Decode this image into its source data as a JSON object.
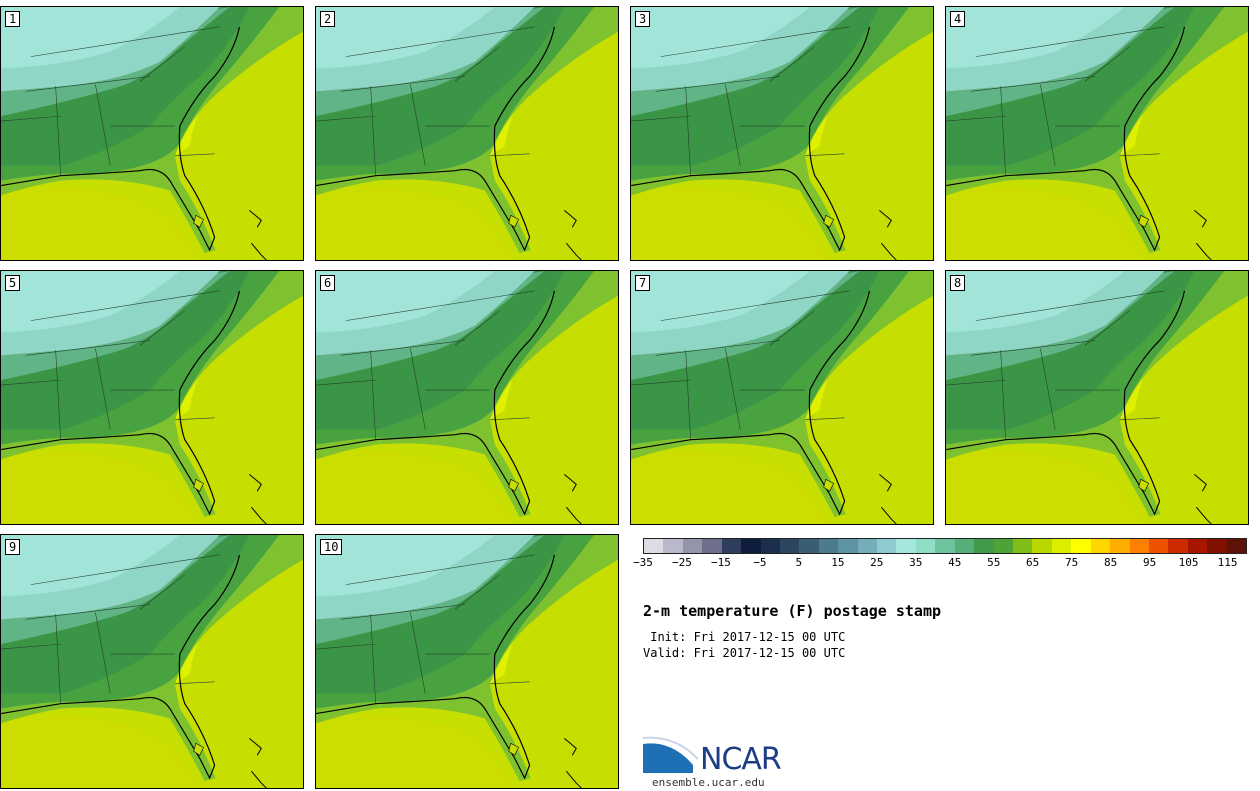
{
  "panels": [
    {
      "label": "1"
    },
    {
      "label": "2"
    },
    {
      "label": "3"
    },
    {
      "label": "4"
    },
    {
      "label": "5"
    },
    {
      "label": "6"
    },
    {
      "label": "7"
    },
    {
      "label": "8"
    },
    {
      "label": "9"
    },
    {
      "label": "10"
    }
  ],
  "colorbar": {
    "colors": [
      "#dcdce4",
      "#b9b9c9",
      "#9494ab",
      "#6f6f8d",
      "#2f3d5e",
      "#0f1c3c",
      "#1d2d4e",
      "#2d4660",
      "#3a5d75",
      "#4c7b8f",
      "#5d93a3",
      "#75aeb8",
      "#8fcacf",
      "#a5e6df",
      "#90ddc6",
      "#6cc39e",
      "#56ae78",
      "#3f9a4a",
      "#4ea338",
      "#7fbd17",
      "#b8d800",
      "#dcee00",
      "#fffd00",
      "#ffd600",
      "#ffad00",
      "#ff8000",
      "#ee5200",
      "#cc2b00",
      "#a81500",
      "#801000",
      "#5e1208"
    ],
    "tick_labels": [
      "−35",
      "−25",
      "−15",
      "−5",
      "5",
      "15",
      "25",
      "35",
      "45",
      "55",
      "65",
      "75",
      "85",
      "95",
      "105",
      "115"
    ]
  },
  "title": "2-m temperature (F) postage stamp",
  "init_line": " Init: Fri 2017-12-15 00 UTC",
  "valid_line": "Valid: Fri 2017-12-15 00 UTC",
  "logo": {
    "name": "NCAR",
    "url": "ensemble.ucar.edu"
  }
}
